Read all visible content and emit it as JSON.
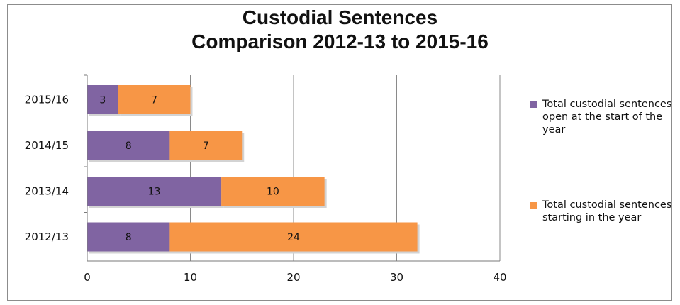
{
  "chart_data": {
    "type": "bar",
    "orientation": "horizontal",
    "stacked": true,
    "title": [
      "Custodial Sentences",
      "Comparison 2012-13 to 2015-16"
    ],
    "categories": [
      "2015/16",
      "2014/15",
      "2013/14",
      "2012/13"
    ],
    "series": [
      {
        "name": "Total custodial sentences open at the start of the year",
        "values": [
          3,
          8,
          13,
          8
        ],
        "color": "#8064a2"
      },
      {
        "name": "Total custodial sentences starting in the year",
        "values": [
          7,
          7,
          10,
          24
        ],
        "color": "#f79646"
      }
    ],
    "xlim": [
      0,
      40
    ],
    "xticks": [
      0,
      10,
      20,
      30,
      40
    ],
    "grid": true,
    "legend_position": "right"
  }
}
